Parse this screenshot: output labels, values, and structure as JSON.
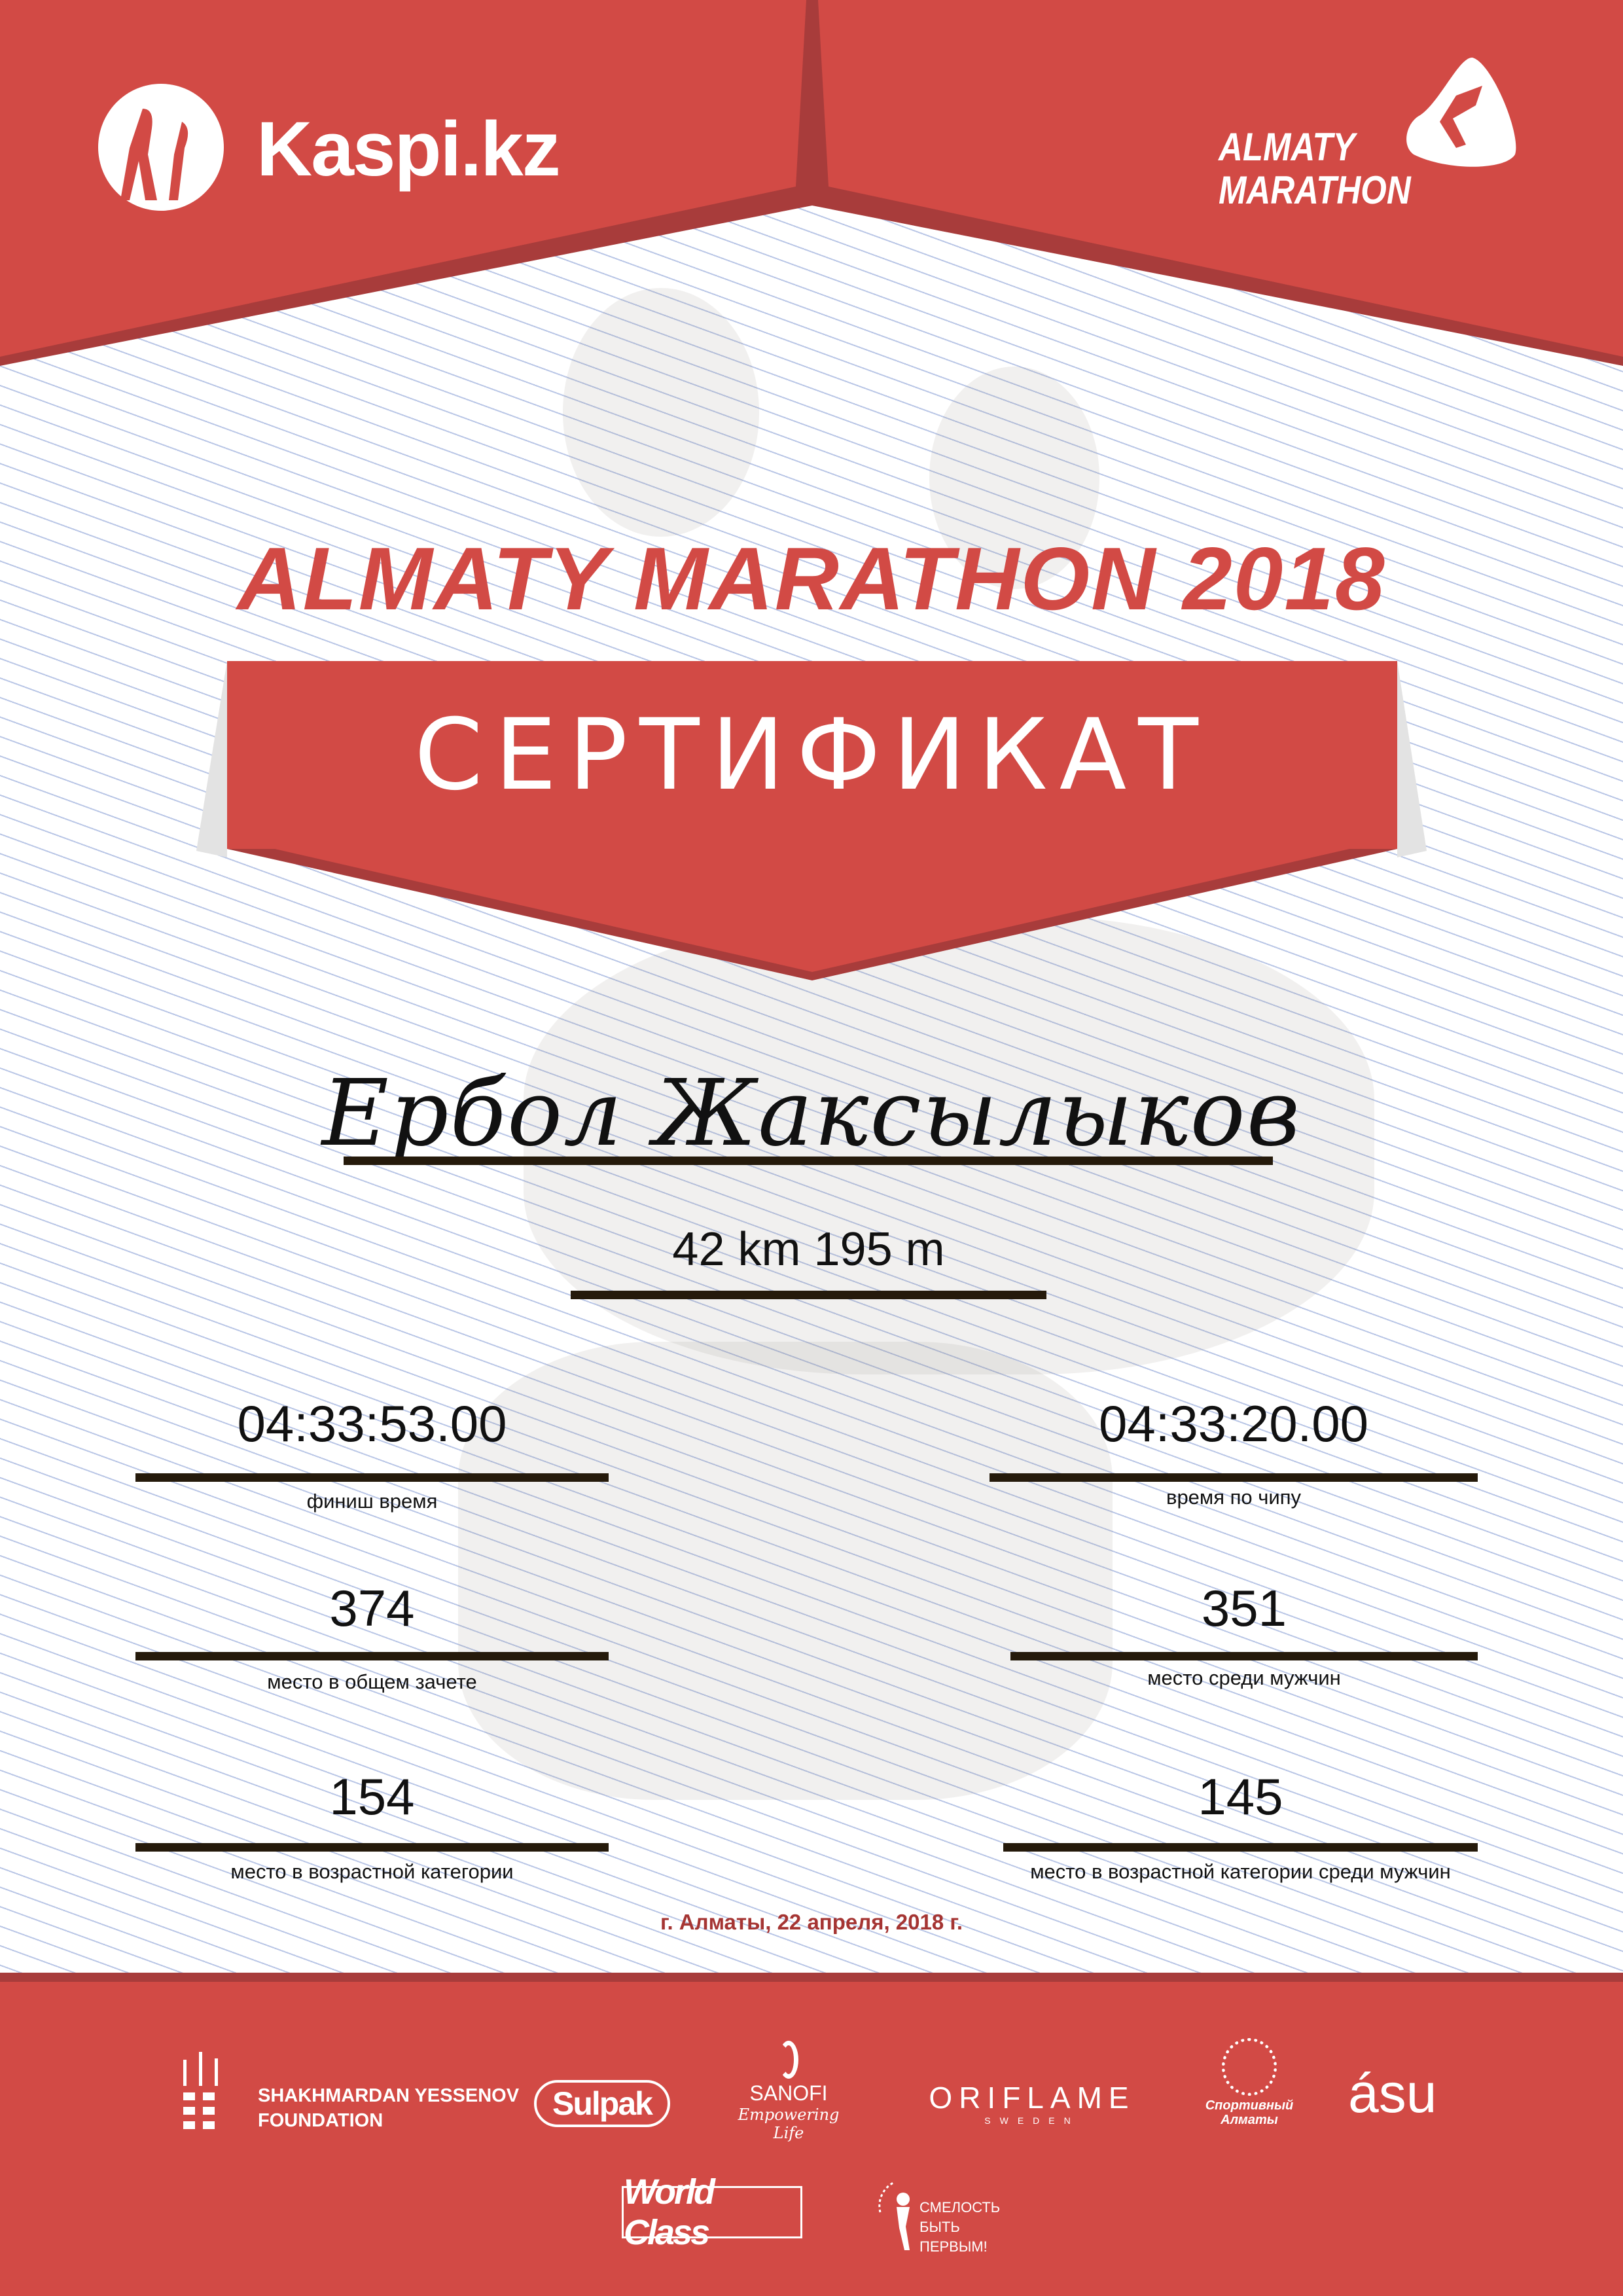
{
  "header": {
    "sponsor_logo": "Kaspi.kz",
    "event_logo_line1": "ALMATY",
    "event_logo_line2": "MARATHON"
  },
  "title": "ALMATY MARATHON 2018",
  "certificate_label": "СЕРТИФИКАТ",
  "participant_name": "Ербол Жаксылыков",
  "distance": "42 km 195 m",
  "stats": [
    {
      "value": "04:33:53.00",
      "label": "финиш время"
    },
    {
      "value": "04:33:20.00",
      "label": "время по чипу"
    },
    {
      "value": "374",
      "label": "место в общем зачете"
    },
    {
      "value": "351",
      "label": "место среди мужчин"
    },
    {
      "value": "154",
      "label": "место в возрастной категории"
    },
    {
      "value": "145",
      "label": "место в возрастной категории среди мужчин"
    }
  ],
  "date": "г. Алматы, 22 апреля, 2018 г.",
  "sponsors": {
    "yessenov_line1": "SHAKHMARDAN YESSENOV",
    "yessenov_line2": "FOUNDATION",
    "sulpak": "Sulpak",
    "sanofi": "SANOFI",
    "sanofi_tagline": "Empowering Life",
    "oriflame": "ORIFLAME",
    "oriflame_sub": "SWEDEN",
    "sport_almaty": "Спортивный Алматы",
    "asu": "ásu",
    "worldclass": "World Class",
    "smelost": "СМЕЛОСТЬ БЫТЬ ПЕРВЫМ!"
  },
  "colors": {
    "brand_red": "#d24a45",
    "dark_red": "#a83c3b",
    "text": "#111111",
    "bars": "#251a0b"
  }
}
